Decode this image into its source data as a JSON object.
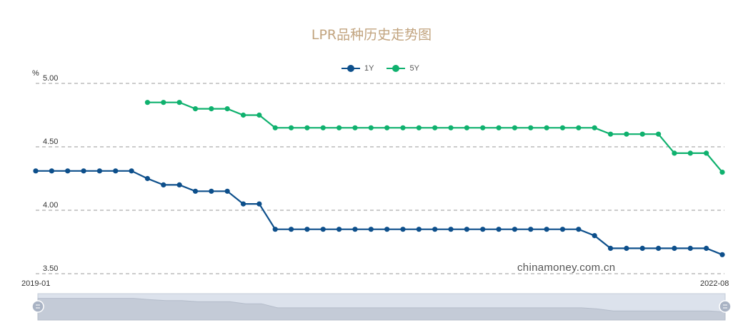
{
  "chart_data": {
    "type": "line",
    "title": "LPR品种历史走势图",
    "ylabel": "%",
    "ylim": [
      3.5,
      5.0
    ],
    "yticks": [
      "5.00",
      "4.50",
      "4.00",
      "3.50"
    ],
    "range_start_label": "2019-01",
    "range_end_label": "2022-08",
    "grid": true,
    "legend_position": "top-center",
    "series": [
      {
        "name": "1Y",
        "color": "#0d4f8b",
        "values": [
          4.31,
          4.31,
          4.31,
          4.31,
          4.31,
          4.31,
          4.31,
          4.25,
          4.2,
          4.2,
          4.15,
          4.15,
          4.15,
          4.05,
          4.05,
          3.85,
          3.85,
          3.85,
          3.85,
          3.85,
          3.85,
          3.85,
          3.85,
          3.85,
          3.85,
          3.85,
          3.85,
          3.85,
          3.85,
          3.85,
          3.85,
          3.85,
          3.85,
          3.85,
          3.85,
          3.8,
          3.7,
          3.7,
          3.7,
          3.7,
          3.7,
          3.7,
          3.7,
          3.65
        ]
      },
      {
        "name": "5Y",
        "color": "#0fb16e",
        "values": [
          null,
          null,
          null,
          null,
          null,
          null,
          null,
          4.85,
          4.85,
          4.85,
          4.8,
          4.8,
          4.8,
          4.75,
          4.75,
          4.65,
          4.65,
          4.65,
          4.65,
          4.65,
          4.65,
          4.65,
          4.65,
          4.65,
          4.65,
          4.65,
          4.65,
          4.65,
          4.65,
          4.65,
          4.65,
          4.65,
          4.65,
          4.65,
          4.65,
          4.65,
          4.6,
          4.6,
          4.6,
          4.6,
          4.45,
          4.45,
          4.45,
          4.3
        ]
      }
    ]
  },
  "watermark": "chinamoney.com.cn"
}
